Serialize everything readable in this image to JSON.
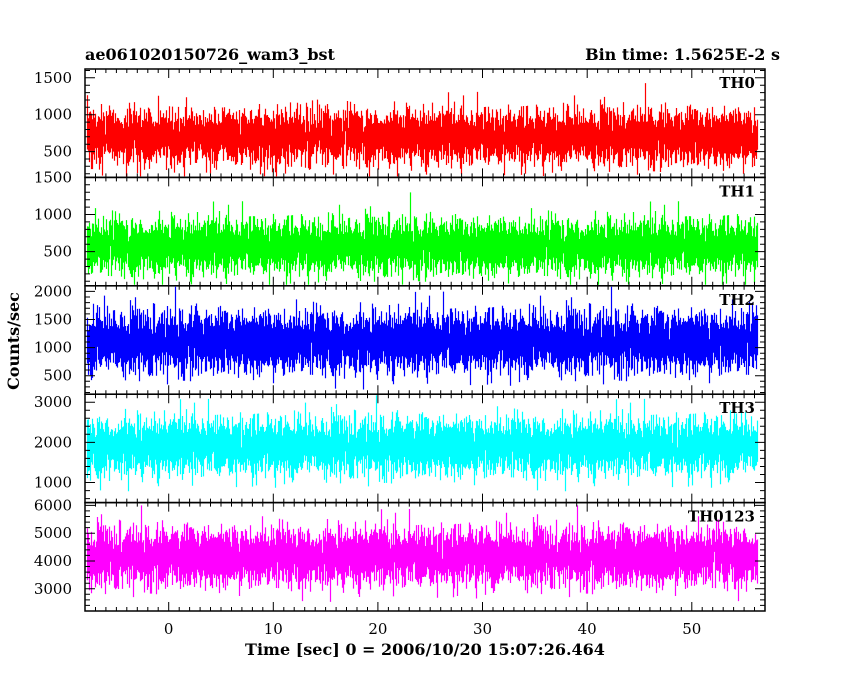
{
  "chart_data": {
    "type": "line",
    "title": "ae061020150726_wam3_bst",
    "subtitle": "Bin time: 1.5625E-2 s",
    "xlabel": "Time [sec] 0 = 2006/10/20 15:07:26.464",
    "ylabel": "Counts/sec",
    "xlim": [
      -8,
      57
    ],
    "x_ticks": [
      0,
      10,
      20,
      30,
      40,
      50
    ],
    "x_tick_labels": [
      "0",
      "10",
      "20",
      "30",
      "40",
      "50"
    ],
    "data_x_range": [
      -7.8,
      56.2
    ],
    "bin_time_s": 0.015625,
    "panels": [
      {
        "name": "TH0",
        "color": "#ff0000",
        "ylim": [
          150,
          1620
        ],
        "y_ticks": [
          500,
          1000,
          1500
        ],
        "y_tick_labels": [
          "500",
          "1000",
          "1500"
        ],
        "mean": 700,
        "sigma": 170,
        "min": 150,
        "max": 1620
      },
      {
        "name": "TH1",
        "color": "#00ff00",
        "ylim": [
          40,
          1500
        ],
        "y_ticks": [
          500,
          1000,
          1500
        ],
        "y_tick_labels": [
          "500",
          "1000",
          "1500"
        ],
        "mean": 570,
        "sigma": 170,
        "min": 40,
        "max": 1480
      },
      {
        "name": "TH2",
        "color": "#0000ff",
        "ylim": [
          170,
          2100
        ],
        "y_ticks": [
          500,
          1000,
          1500,
          2000
        ],
        "y_tick_labels": [
          "500",
          "1000",
          "1500",
          "2000"
        ],
        "mean": 1100,
        "sigma": 250,
        "min": 170,
        "max": 2100
      },
      {
        "name": "TH3",
        "color": "#00ffff",
        "ylim": [
          500,
          3200
        ],
        "y_ticks": [
          1000,
          2000,
          3000
        ],
        "y_tick_labels": [
          "1000",
          "2000",
          "3000"
        ],
        "mean": 1900,
        "sigma": 330,
        "min": 550,
        "max": 3200
      },
      {
        "name": "TH0123",
        "color": "#ff00ff",
        "ylim": [
          2200,
          6100
        ],
        "y_ticks": [
          3000,
          4000,
          5000,
          6000
        ],
        "y_tick_labels": [
          "3000",
          "4000",
          "5000",
          "6000"
        ],
        "mean": 4150,
        "sigma": 480,
        "min": 2300,
        "max": 6000
      }
    ]
  }
}
